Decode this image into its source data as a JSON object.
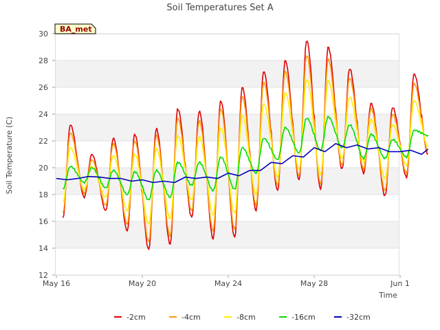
{
  "chart_data": {
    "type": "line",
    "title": "Soil Temperatures Set A",
    "xlabel": "Time",
    "ylabel": "Soil Temperature (C)",
    "badge": "BA_met",
    "x_unit": "date (2016 not shown; labels only)",
    "xlim": [
      "May 16",
      "Jun 3"
    ],
    "x_ticks": [
      "May 16",
      "May 20",
      "May 24",
      "May 28",
      "Jun 1"
    ],
    "ylim": [
      12,
      30
    ],
    "y_ticks": [
      12,
      14,
      16,
      18,
      20,
      22,
      24,
      26,
      28,
      30
    ],
    "grid": true,
    "legend_position": "bottom",
    "series": [
      {
        "name": "-2cm",
        "color": "#dd0000",
        "mean": [
          19.3,
          19.3,
          19.4,
          19.5,
          19.5,
          19.6,
          19.7,
          19.7,
          19.8,
          19.9,
          20.2,
          20.6,
          21.6,
          22.1,
          22.5,
          23.0,
          22.8,
          22.0,
          21.9
        ],
        "max": [
          23.2,
          21.0,
          22.2,
          22.5,
          22.9,
          24.4,
          24.2,
          25.0,
          26.0,
          27.2,
          28.0,
          29.5,
          29.0,
          27.4,
          24.8,
          24.5,
          27.0
        ],
        "min": [
          16.2,
          17.8,
          16.8,
          15.3,
          13.9,
          14.3,
          16.3,
          14.7,
          14.8,
          16.8,
          18.3,
          19.1,
          18.4,
          19.9,
          19.6,
          17.9,
          19.3,
          21.0
        ]
      },
      {
        "name": "-4cm",
        "color": "#ff9900",
        "mean": [
          19.3,
          19.3,
          19.4,
          19.5,
          19.5,
          19.6,
          19.7,
          19.7,
          19.8,
          19.9,
          20.2,
          20.6,
          21.6,
          22.1,
          22.5,
          23.0,
          22.8,
          22.0,
          21.9
        ],
        "max": [
          22.6,
          20.6,
          21.8,
          22.0,
          22.4,
          23.7,
          23.5,
          24.4,
          25.3,
          26.4,
          27.2,
          28.4,
          28.1,
          26.7,
          24.4,
          24.0,
          26.3
        ],
        "min": [
          16.6,
          18.1,
          17.2,
          15.8,
          14.5,
          14.9,
          16.8,
          15.3,
          15.4,
          17.2,
          18.7,
          19.4,
          18.8,
          20.2,
          19.9,
          18.3,
          19.6,
          21.2
        ]
      },
      {
        "name": "-8cm",
        "color": "#ffee00",
        "mean": [
          19.2,
          19.2,
          19.3,
          19.4,
          19.4,
          19.5,
          19.6,
          19.6,
          19.7,
          19.8,
          20.1,
          20.5,
          21.5,
          22.0,
          22.4,
          22.9,
          22.7,
          21.9,
          21.8
        ],
        "max": [
          21.5,
          20.1,
          20.9,
          21.0,
          21.4,
          22.4,
          22.3,
          23.0,
          23.9,
          24.8,
          25.6,
          26.6,
          26.5,
          25.3,
          23.6,
          23.2,
          25.0
        ],
        "min": [
          17.4,
          18.4,
          17.8,
          16.8,
          15.8,
          16.2,
          17.6,
          16.5,
          16.6,
          18.0,
          19.3,
          19.9,
          19.5,
          20.7,
          20.4,
          19.2,
          20.2,
          21.6
        ]
      },
      {
        "name": "-16cm",
        "color": "#00dd00",
        "mean": [
          19.3,
          19.3,
          19.1,
          19.0,
          19.0,
          19.1,
          19.3,
          19.4,
          19.6,
          20.0,
          20.6,
          21.4,
          22.0,
          22.3,
          22.3,
          21.9,
          21.7,
          21.9
        ],
        "max": [
          20.1,
          20.0,
          19.8,
          19.7,
          19.8,
          20.4,
          20.4,
          20.8,
          21.5,
          22.2,
          23.0,
          23.7,
          23.8,
          23.2,
          22.5,
          22.1,
          22.8
        ],
        "min": [
          18.4,
          18.9,
          18.5,
          18.0,
          17.6,
          17.8,
          18.7,
          18.3,
          18.4,
          19.6,
          20.6,
          21.1,
          21.3,
          21.5,
          20.7,
          20.7,
          20.8,
          22.4
        ]
      },
      {
        "name": "-32cm",
        "color": "#0000bb",
        "points": [
          [
            0,
            19.2
          ],
          [
            0.5,
            19.1
          ],
          [
            1,
            19.2
          ],
          [
            1.5,
            19.35
          ],
          [
            2,
            19.3
          ],
          [
            2.5,
            19.2
          ],
          [
            3,
            19.2
          ],
          [
            3.5,
            19.0
          ],
          [
            4,
            19.1
          ],
          [
            4.5,
            18.9
          ],
          [
            5,
            19.0
          ],
          [
            5.5,
            18.9
          ],
          [
            6,
            19.3
          ],
          [
            6.5,
            19.2
          ],
          [
            7,
            19.3
          ],
          [
            7.5,
            19.2
          ],
          [
            8,
            19.6
          ],
          [
            8.5,
            19.4
          ],
          [
            9,
            19.8
          ],
          [
            9.5,
            19.8
          ],
          [
            10,
            20.4
          ],
          [
            10.5,
            20.3
          ],
          [
            11,
            20.9
          ],
          [
            11.5,
            20.8
          ],
          [
            12,
            21.5
          ],
          [
            12.5,
            21.2
          ],
          [
            13,
            21.8
          ],
          [
            13.5,
            21.5
          ],
          [
            14,
            21.7
          ],
          [
            14.5,
            21.4
          ],
          [
            15,
            21.5
          ],
          [
            15.5,
            21.2
          ],
          [
            16,
            21.2
          ],
          [
            16.5,
            21.3
          ],
          [
            17,
            21.0
          ],
          [
            17.3,
            21.4
          ]
        ]
      }
    ]
  }
}
